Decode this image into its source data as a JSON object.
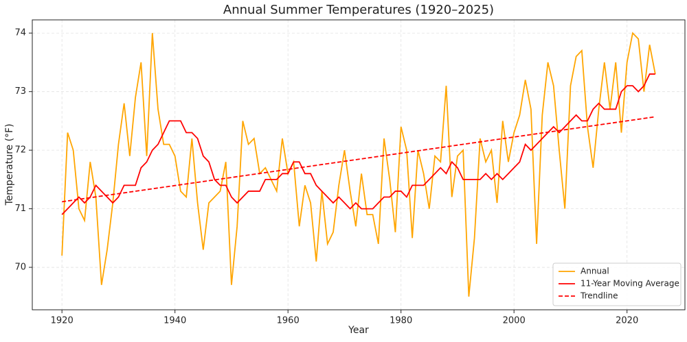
{
  "chart_data": {
    "type": "line",
    "title": "Annual Summer Temperatures (1920–2025)",
    "x_label": "Year",
    "y_label": "Temperature (°F)",
    "x": [
      1920,
      1921,
      1922,
      1923,
      1924,
      1925,
      1926,
      1927,
      1928,
      1929,
      1930,
      1931,
      1932,
      1933,
      1934,
      1935,
      1936,
      1937,
      1938,
      1939,
      1940,
      1941,
      1942,
      1943,
      1944,
      1945,
      1946,
      1947,
      1948,
      1949,
      1950,
      1951,
      1952,
      1953,
      1954,
      1955,
      1956,
      1957,
      1958,
      1959,
      1960,
      1961,
      1962,
      1963,
      1964,
      1965,
      1966,
      1967,
      1968,
      1969,
      1970,
      1971,
      1972,
      1973,
      1974,
      1975,
      1976,
      1977,
      1978,
      1979,
      1980,
      1981,
      1982,
      1983,
      1984,
      1985,
      1986,
      1987,
      1988,
      1989,
      1990,
      1991,
      1992,
      1993,
      1994,
      1995,
      1996,
      1997,
      1998,
      1999,
      2000,
      2001,
      2002,
      2003,
      2004,
      2005,
      2006,
      2007,
      2008,
      2009,
      2010,
      2011,
      2012,
      2013,
      2014,
      2015,
      2016,
      2017,
      2018,
      2019,
      2020,
      2021,
      2022,
      2023,
      2024,
      2025
    ],
    "series": [
      {
        "name": "Annual",
        "color": "#ffa500",
        "values": [
          70.2,
          72.3,
          72.0,
          71.0,
          70.8,
          71.8,
          71.2,
          69.7,
          70.3,
          71.1,
          72.1,
          72.8,
          71.9,
          72.9,
          73.5,
          71.9,
          74.0,
          72.7,
          72.1,
          72.1,
          71.9,
          71.3,
          71.2,
          72.2,
          71.1,
          70.3,
          71.1,
          71.2,
          71.3,
          71.8,
          69.7,
          70.7,
          72.5,
          72.1,
          72.2,
          71.6,
          71.7,
          71.5,
          71.3,
          72.2,
          71.6,
          71.8,
          70.7,
          71.4,
          71.1,
          70.1,
          71.3,
          70.4,
          70.6,
          71.4,
          72.0,
          71.3,
          70.7,
          71.6,
          70.9,
          70.9,
          70.4,
          72.2,
          71.5,
          70.6,
          72.4,
          72.0,
          70.5,
          72.0,
          71.6,
          71.0,
          71.9,
          71.8,
          73.1,
          71.2,
          71.9,
          72.0,
          69.5,
          70.5,
          72.2,
          71.8,
          72.0,
          71.1,
          72.5,
          71.8,
          72.3,
          72.6,
          73.2,
          72.7,
          70.4,
          72.6,
          73.5,
          73.1,
          72.0,
          71.0,
          73.1,
          73.6,
          73.7,
          72.4,
          71.7,
          72.7,
          73.5,
          72.7,
          73.5,
          72.3,
          73.5,
          74.0,
          73.9,
          73.0,
          73.8,
          73.3
        ]
      },
      {
        "name": "11-Year Moving Average",
        "color": "#ff0000",
        "values": [
          70.9,
          71.0,
          71.1,
          71.2,
          71.1,
          71.2,
          71.4,
          71.3,
          71.2,
          71.1,
          71.2,
          71.4,
          71.4,
          71.4,
          71.7,
          71.8,
          72.0,
          72.1,
          72.3,
          72.5,
          72.5,
          72.5,
          72.3,
          72.3,
          72.2,
          71.9,
          71.8,
          71.5,
          71.4,
          71.4,
          71.2,
          71.1,
          71.2,
          71.3,
          71.3,
          71.3,
          71.5,
          71.5,
          71.5,
          71.6,
          71.6,
          71.8,
          71.8,
          71.6,
          71.6,
          71.4,
          71.3,
          71.2,
          71.1,
          71.2,
          71.1,
          71.0,
          71.1,
          71.0,
          71.0,
          71.0,
          71.1,
          71.2,
          71.2,
          71.3,
          71.3,
          71.2,
          71.4,
          71.4,
          71.4,
          71.5,
          71.6,
          71.7,
          71.6,
          71.8,
          71.7,
          71.5,
          71.5,
          71.5,
          71.5,
          71.6,
          71.5,
          71.6,
          71.5,
          71.6,
          71.7,
          71.8,
          72.1,
          72.0,
          72.1,
          72.2,
          72.3,
          72.4,
          72.3,
          72.4,
          72.5,
          72.6,
          72.5,
          72.5,
          72.7,
          72.8,
          72.7,
          72.7,
          72.7,
          73.0,
          73.1,
          73.1,
          73.0,
          73.1,
          73.3,
          73.3
        ]
      },
      {
        "name": "Trendline",
        "color": "#ff0000",
        "dashed": true,
        "x": [
          1920,
          2025
        ],
        "values": [
          71.12,
          72.57
        ]
      }
    ],
    "xlim": [
      1914.75,
      2030.25
    ],
    "ylim": [
      69.275,
      74.225
    ],
    "xticks": [
      1920,
      1940,
      1960,
      1980,
      2000,
      2020
    ],
    "yticks": [
      70,
      71,
      72,
      73,
      74
    ],
    "grid": true,
    "legend": "lower right"
  }
}
